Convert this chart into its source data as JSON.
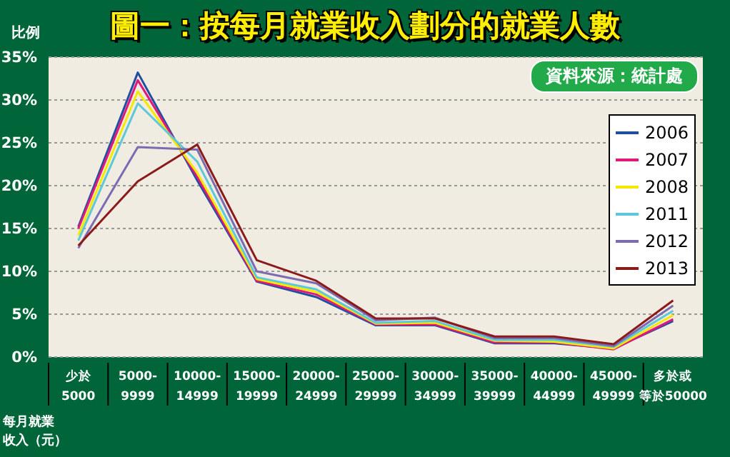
{
  "chart_data": {
    "type": "line",
    "title": "圖一：按每月就業收入劃分的就業人數",
    "ylabel": "比例",
    "xlabel": "每月就業收入（元）",
    "annotations": [
      "資料來源：統計處"
    ],
    "categories": [
      "少於5000",
      "5000-9999",
      "10000-14999",
      "15000-19999",
      "20000-24999",
      "25000-29999",
      "30000-34999",
      "35000-39999",
      "40000-44999",
      "45000-49999",
      "多於或等於50000"
    ],
    "series": [
      {
        "name": "2006",
        "color": "#1f4fa0",
        "values": [
          15.2,
          33.2,
          20.6,
          8.8,
          7.0,
          3.7,
          3.7,
          1.6,
          1.6,
          1.0,
          4.2
        ]
      },
      {
        "name": "2007",
        "color": "#e0187a",
        "values": [
          15.0,
          32.3,
          21.0,
          8.9,
          7.3,
          3.8,
          3.8,
          1.7,
          1.7,
          0.9,
          4.4
        ]
      },
      {
        "name": "2008",
        "color": "#f5e800",
        "values": [
          14.2,
          31.0,
          21.5,
          9.1,
          7.6,
          3.9,
          4.0,
          1.9,
          1.8,
          1.0,
          4.9
        ]
      },
      {
        "name": "2011",
        "color": "#5cc8d8",
        "values": [
          13.6,
          29.6,
          22.8,
          9.3,
          7.9,
          4.0,
          4.2,
          2.0,
          2.0,
          1.2,
          5.4
        ]
      },
      {
        "name": "2012",
        "color": "#7b6bb0",
        "values": [
          12.7,
          24.5,
          24.2,
          10.0,
          8.6,
          4.3,
          4.6,
          2.2,
          2.2,
          1.3,
          6.0
        ]
      },
      {
        "name": "2013",
        "color": "#8b1a1a",
        "values": [
          13.0,
          20.5,
          24.8,
          11.3,
          8.9,
          4.5,
          4.5,
          2.4,
          2.4,
          1.5,
          6.6
        ]
      }
    ],
    "ylim": [
      0,
      35
    ],
    "yticks": [
      {
        "value": 0,
        "label": "0%"
      },
      {
        "value": 5,
        "label": "5%"
      },
      {
        "value": 10,
        "label": "10%"
      },
      {
        "value": 15,
        "label": "15%"
      },
      {
        "value": 20,
        "label": "20%"
      },
      {
        "value": 25,
        "label": "25%"
      },
      {
        "value": 30,
        "label": "30%"
      },
      {
        "value": 35,
        "label": "35%"
      }
    ],
    "grid": "y",
    "legend": "top right",
    "marker": "none",
    "line_style": "solid"
  }
}
